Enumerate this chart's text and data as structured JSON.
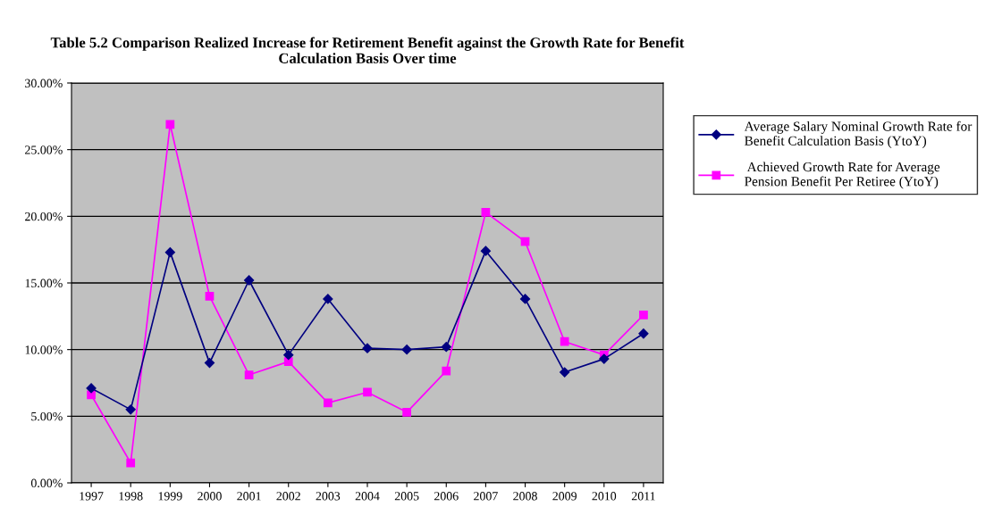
{
  "chart_data": {
    "type": "line",
    "title": "Table 5.2 Comparison Realized Increase for Retirement Benefit against the Growth Rate for Benefit\nCalculation Basis Over time",
    "categories": [
      "1997",
      "1998",
      "1999",
      "2000",
      "2001",
      "2002",
      "2003",
      "2004",
      "2005",
      "2006",
      "2007",
      "2008",
      "2009",
      "2010",
      "2011"
    ],
    "series": [
      {
        "name": "Average Salary Nominal Growth Rate for\nBenefit Calculation Basis (YtoY)",
        "color": "#000080",
        "marker": "diamond",
        "values": [
          7.1,
          5.5,
          17.3,
          9.0,
          15.2,
          9.6,
          13.8,
          10.1,
          10.0,
          10.2,
          17.4,
          13.8,
          8.3,
          9.3,
          11.2
        ]
      },
      {
        "name": " Achieved Growth Rate for Average\nPension Benefit Per Retiree (YtoY)",
        "color": "#ff00ff",
        "marker": "square",
        "values": [
          6.6,
          1.5,
          26.9,
          14.0,
          8.1,
          9.1,
          6.0,
          6.8,
          5.3,
          8.4,
          20.3,
          18.1,
          10.6,
          9.6,
          12.6
        ]
      }
    ],
    "ylim": [
      0,
      30
    ],
    "yticks": [
      {
        "value": 0,
        "label": "0.00%"
      },
      {
        "value": 5,
        "label": "5.00%"
      },
      {
        "value": 10,
        "label": "10.00%"
      },
      {
        "value": 15,
        "label": "15.00%"
      },
      {
        "value": 20,
        "label": "20.00%"
      },
      {
        "value": 25,
        "label": "25.00%"
      },
      {
        "value": 30,
        "label": "30.00%"
      }
    ],
    "grid": "y",
    "legend": "right",
    "line_style": "solid"
  }
}
